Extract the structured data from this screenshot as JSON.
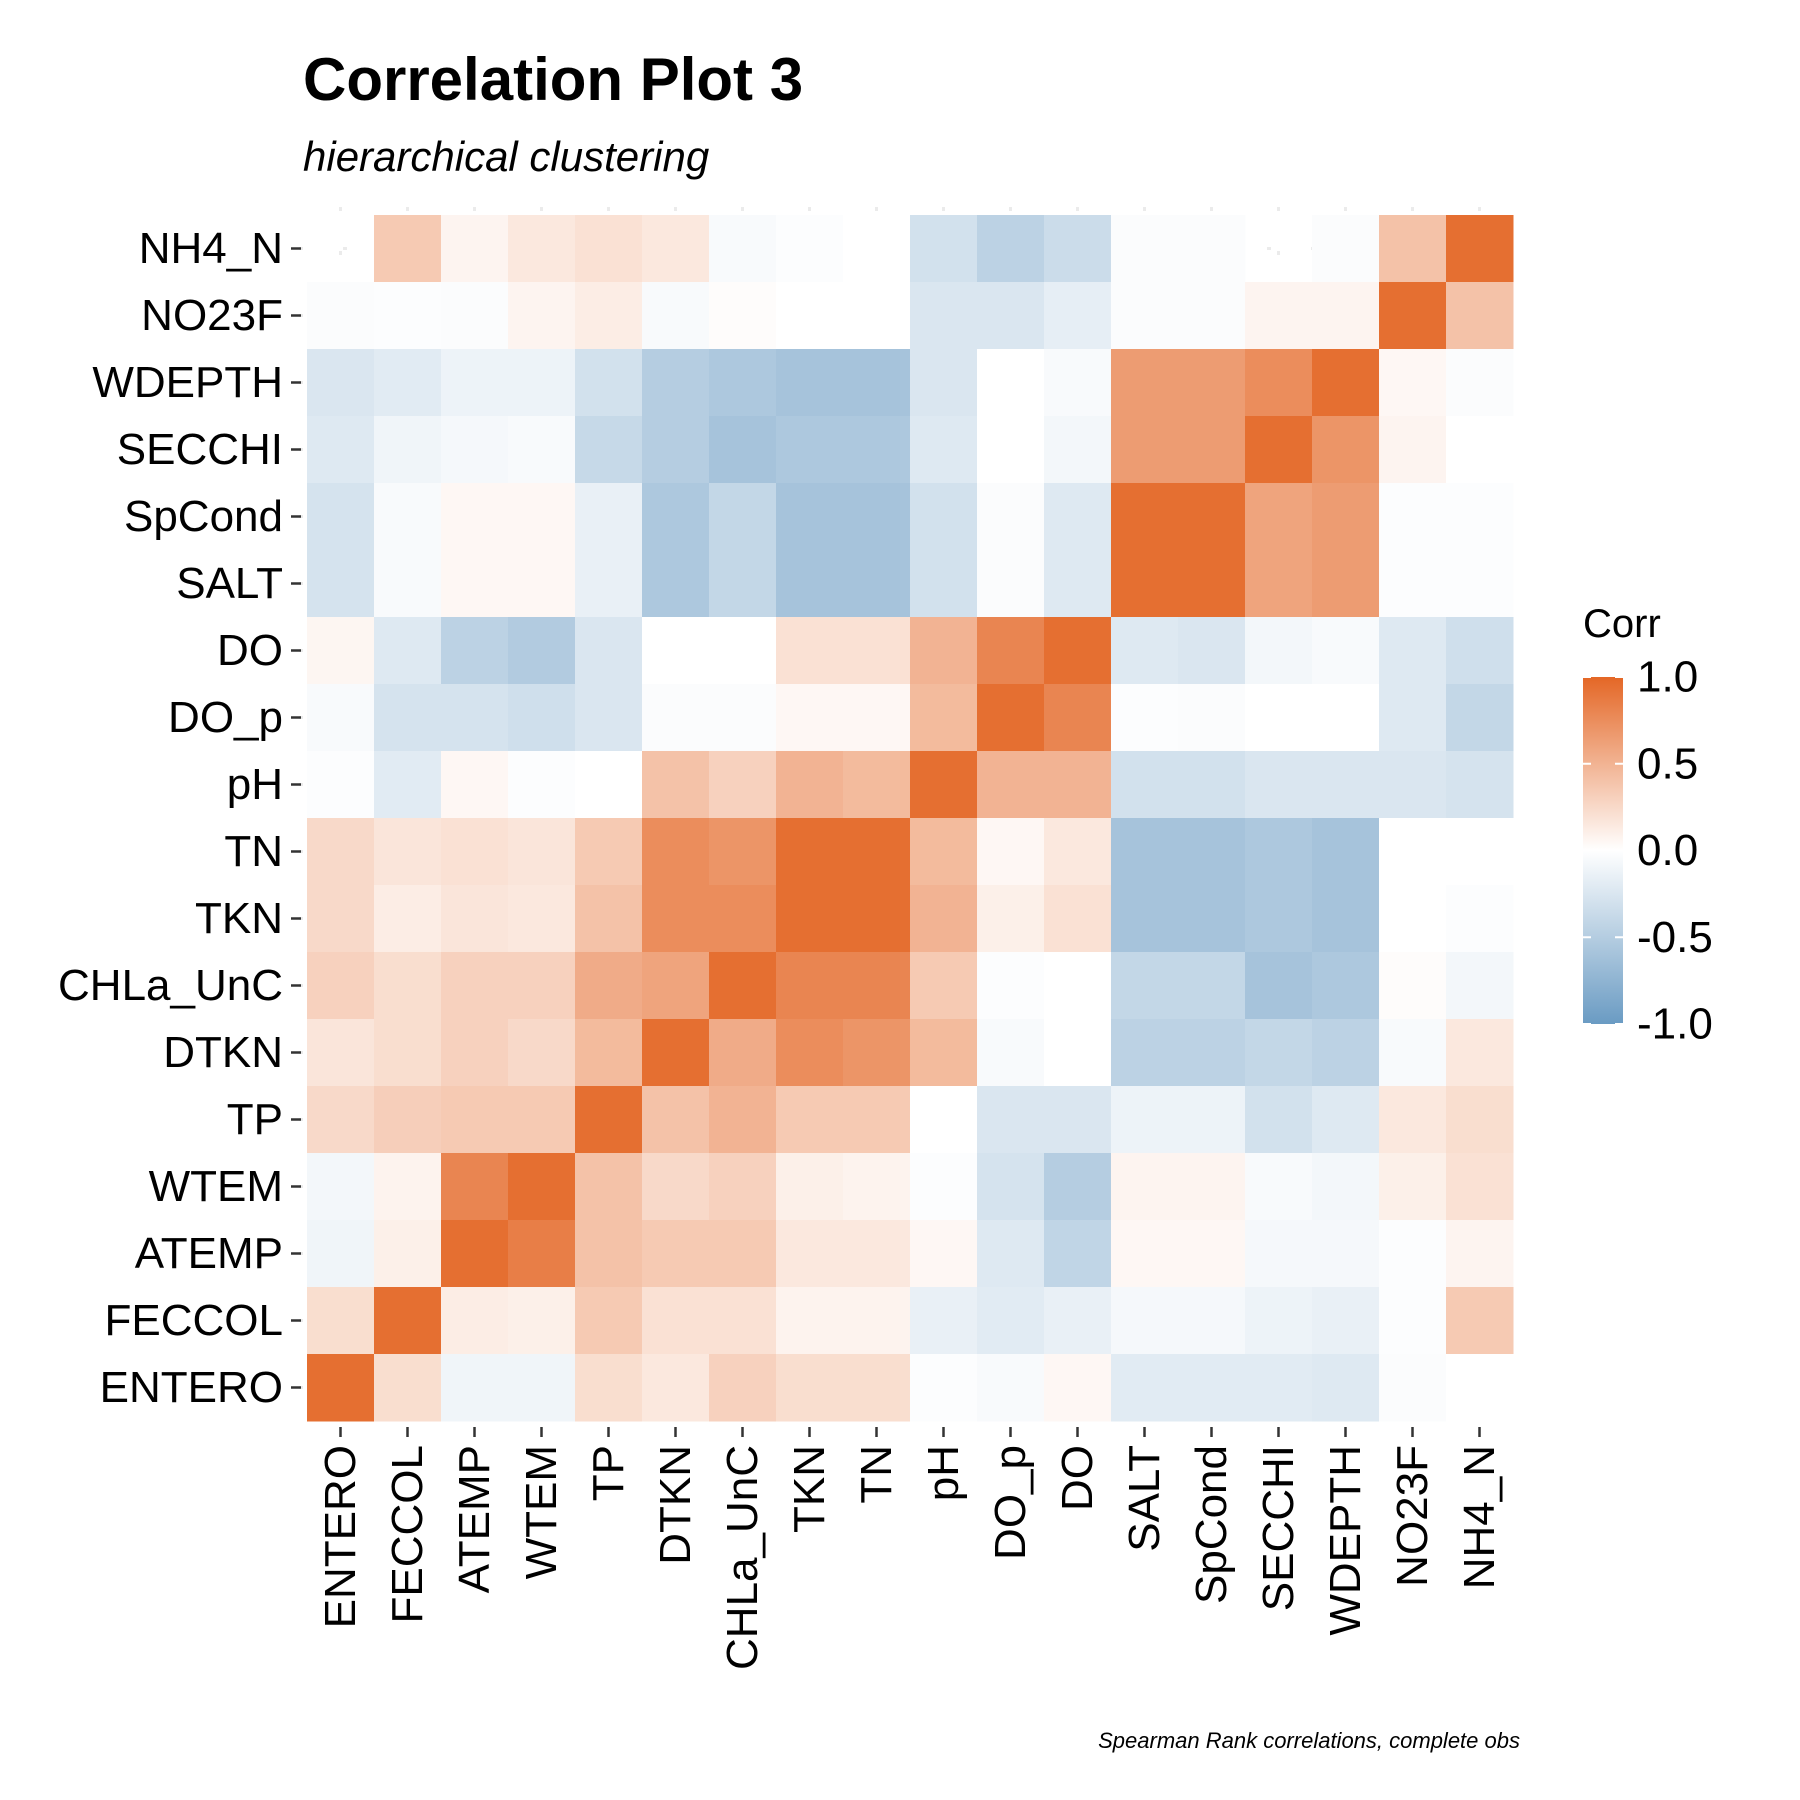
{
  "chart_data": {
    "type": "heatmap",
    "title": "Correlation Plot 3",
    "subtitle": "hierarchical clustering",
    "caption": "Spearman Rank correlations, complete obs",
    "legend_title": "Corr",
    "legend_ticks": [
      1.0,
      0.5,
      0.0,
      -0.5,
      -1.0
    ],
    "legend_tick_labels": [
      "1.0",
      "0.5",
      "0.0",
      "-0.5",
      "-1.0"
    ],
    "color_scale": {
      "low": "#6a9bc3",
      "mid": "#ffffff",
      "high": "#e46726",
      "limits": [
        -1,
        1
      ]
    },
    "x_categories": [
      "ENTERO",
      "FECCOL",
      "ATEMP",
      "WTEM",
      "TP",
      "DTKN",
      "CHLa_UnC",
      "TKN",
      "TN",
      "pH",
      "DO_p",
      "DO",
      "SALT",
      "SpCond",
      "SECCHI",
      "WDEPTH",
      "NO23F",
      "NH4_N"
    ],
    "y_categories": [
      "NH4_N",
      "NO23F",
      "WDEPTH",
      "SECCHI",
      "SpCond",
      "SALT",
      "DO",
      "DO_p",
      "pH",
      "TN",
      "TKN",
      "CHLa_UnC",
      "DTKN",
      "TP",
      "WTEM",
      "ATEMP",
      "FECCOL",
      "ENTERO"
    ],
    "values": [
      [
        null,
        0.35,
        0.07,
        0.15,
        0.2,
        0.15,
        -0.05,
        -0.02,
        0.0,
        -0.3,
        -0.45,
        -0.35,
        -0.03,
        -0.03,
        null,
        -0.03,
        0.4,
        0.95
      ],
      [
        -0.03,
        -0.02,
        -0.03,
        0.07,
        0.12,
        -0.05,
        0.02,
        0.0,
        0.0,
        -0.25,
        -0.25,
        -0.17,
        -0.03,
        -0.03,
        0.07,
        0.07,
        0.95,
        0.4
      ],
      [
        -0.25,
        -0.2,
        -0.12,
        -0.12,
        -0.3,
        -0.5,
        -0.55,
        -0.6,
        -0.6,
        -0.25,
        0.0,
        -0.05,
        0.65,
        0.65,
        0.75,
        0.95,
        0.05,
        -0.03
      ],
      [
        -0.22,
        -0.1,
        -0.07,
        -0.05,
        -0.38,
        -0.5,
        -0.6,
        -0.55,
        -0.55,
        -0.22,
        0.0,
        -0.08,
        0.65,
        0.65,
        0.95,
        0.7,
        0.07,
        0.0
      ],
      [
        -0.28,
        -0.05,
        0.05,
        0.05,
        -0.15,
        -0.55,
        -0.4,
        -0.6,
        -0.6,
        -0.3,
        -0.03,
        -0.22,
        0.95,
        0.95,
        0.6,
        0.65,
        -0.02,
        -0.02
      ],
      [
        -0.28,
        -0.05,
        0.05,
        0.05,
        -0.15,
        -0.55,
        -0.4,
        -0.6,
        -0.6,
        -0.3,
        -0.03,
        -0.22,
        0.95,
        0.95,
        0.6,
        0.65,
        -0.02,
        -0.02
      ],
      [
        0.06,
        -0.22,
        -0.45,
        -0.52,
        -0.25,
        0.0,
        0.0,
        0.2,
        0.2,
        0.5,
        0.8,
        0.95,
        -0.22,
        -0.25,
        -0.08,
        -0.05,
        -0.22,
        -0.32
      ],
      [
        -0.05,
        -0.28,
        -0.28,
        -0.32,
        -0.25,
        -0.03,
        -0.03,
        0.05,
        0.05,
        0.45,
        0.95,
        0.8,
        -0.02,
        -0.03,
        0.0,
        0.0,
        -0.22,
        -0.4
      ],
      [
        -0.02,
        -0.2,
        0.05,
        -0.02,
        0.0,
        0.4,
        0.3,
        0.5,
        0.45,
        0.95,
        0.5,
        0.5,
        -0.3,
        -0.3,
        -0.25,
        -0.25,
        -0.25,
        -0.28
      ],
      [
        0.25,
        0.17,
        0.2,
        0.17,
        0.35,
        0.75,
        0.7,
        0.95,
        0.95,
        0.45,
        0.05,
        0.15,
        -0.6,
        -0.6,
        -0.55,
        -0.6,
        0.0,
        0.0
      ],
      [
        0.25,
        0.12,
        0.17,
        0.15,
        0.4,
        0.75,
        0.75,
        0.95,
        0.95,
        0.5,
        0.1,
        0.2,
        -0.6,
        -0.6,
        -0.55,
        -0.6,
        0.0,
        -0.02
      ],
      [
        0.3,
        0.22,
        0.3,
        0.3,
        0.55,
        0.6,
        0.95,
        0.8,
        0.8,
        0.35,
        -0.02,
        0.0,
        -0.4,
        -0.4,
        -0.6,
        -0.55,
        0.02,
        -0.08
      ],
      [
        0.17,
        0.22,
        0.3,
        0.25,
        0.45,
        0.95,
        0.55,
        0.75,
        0.7,
        0.45,
        -0.05,
        0.0,
        -0.45,
        -0.45,
        -0.4,
        -0.45,
        -0.05,
        0.15
      ],
      [
        0.25,
        0.32,
        0.35,
        0.35,
        0.95,
        0.4,
        0.5,
        0.35,
        0.35,
        0.0,
        -0.25,
        -0.25,
        -0.12,
        -0.12,
        -0.3,
        -0.22,
        0.15,
        0.22
      ],
      [
        -0.08,
        0.08,
        0.8,
        0.95,
        0.4,
        0.25,
        0.3,
        0.1,
        0.08,
        -0.02,
        -0.28,
        -0.5,
        0.07,
        0.07,
        -0.05,
        -0.08,
        0.1,
        0.2
      ],
      [
        -0.1,
        0.1,
        0.95,
        0.85,
        0.4,
        0.35,
        0.35,
        0.15,
        0.15,
        0.05,
        -0.22,
        -0.42,
        0.05,
        0.05,
        -0.07,
        -0.07,
        -0.02,
        0.07
      ],
      [
        0.22,
        0.95,
        0.12,
        0.1,
        0.35,
        0.2,
        0.2,
        0.08,
        0.08,
        -0.15,
        -0.2,
        -0.15,
        -0.07,
        -0.07,
        -0.12,
        -0.15,
        -0.02,
        0.35
      ],
      [
        0.95,
        0.22,
        -0.1,
        -0.1,
        0.22,
        0.15,
        0.3,
        0.22,
        0.22,
        -0.02,
        -0.05,
        0.05,
        -0.2,
        -0.2,
        -0.2,
        -0.22,
        -0.03,
        0.0
      ]
    ]
  }
}
